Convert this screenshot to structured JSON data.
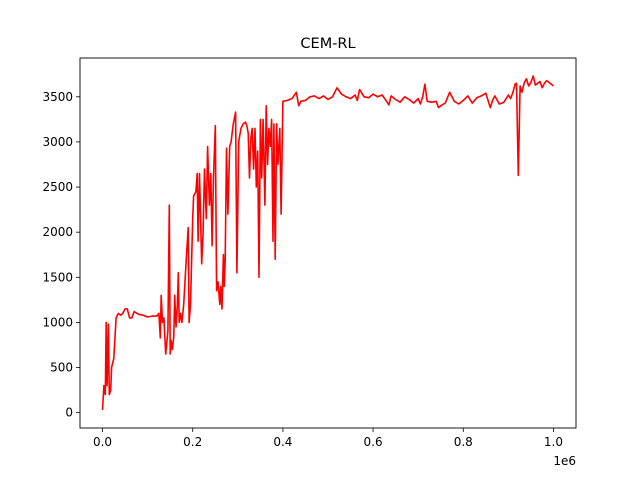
{
  "chart_data": {
    "type": "line",
    "title": "CEM-RL",
    "xlabel": "",
    "ylabel": "",
    "x_offset_label": "1e6",
    "xlim": [
      -0.05,
      1.05
    ],
    "ylim": [
      -170,
      3930
    ],
    "xticks": [
      0.0,
      0.2,
      0.4,
      0.6,
      0.8,
      1.0
    ],
    "xtick_labels": [
      "0.0",
      "0.2",
      "0.4",
      "0.6",
      "0.8",
      "1.0"
    ],
    "yticks": [
      0,
      500,
      1000,
      1500,
      2000,
      2500,
      3000,
      3500
    ],
    "ytick_labels": [
      "0",
      "500",
      "1000",
      "1500",
      "2000",
      "2500",
      "3000",
      "3500"
    ],
    "grid": false,
    "series": [
      {
        "color": "#ff0000",
        "points": [
          [
            0.0,
            30
          ],
          [
            0.003,
            300
          ],
          [
            0.006,
            200
          ],
          [
            0.008,
            1000
          ],
          [
            0.01,
            300
          ],
          [
            0.013,
            980
          ],
          [
            0.015,
            200
          ],
          [
            0.018,
            250
          ],
          [
            0.02,
            500
          ],
          [
            0.025,
            600
          ],
          [
            0.03,
            1050
          ],
          [
            0.035,
            1100
          ],
          [
            0.04,
            1080
          ],
          [
            0.045,
            1100
          ],
          [
            0.05,
            1150
          ],
          [
            0.055,
            1150
          ],
          [
            0.06,
            1050
          ],
          [
            0.065,
            1050
          ],
          [
            0.07,
            1120
          ],
          [
            0.08,
            1090
          ],
          [
            0.09,
            1080
          ],
          [
            0.1,
            1060
          ],
          [
            0.11,
            1070
          ],
          [
            0.12,
            1070
          ],
          [
            0.125,
            1100
          ],
          [
            0.128,
            830
          ],
          [
            0.13,
            1300
          ],
          [
            0.133,
            1000
          ],
          [
            0.136,
            1050
          ],
          [
            0.14,
            650
          ],
          [
            0.145,
            900
          ],
          [
            0.148,
            2300
          ],
          [
            0.15,
            650
          ],
          [
            0.152,
            800
          ],
          [
            0.155,
            700
          ],
          [
            0.158,
            850
          ],
          [
            0.16,
            1300
          ],
          [
            0.163,
            950
          ],
          [
            0.166,
            1200
          ],
          [
            0.168,
            1550
          ],
          [
            0.17,
            1000
          ],
          [
            0.173,
            1100
          ],
          [
            0.176,
            1000
          ],
          [
            0.18,
            1200
          ],
          [
            0.185,
            1650
          ],
          [
            0.19,
            2050
          ],
          [
            0.192,
            1000
          ],
          [
            0.195,
            1200
          ],
          [
            0.2,
            2150
          ],
          [
            0.202,
            2400
          ],
          [
            0.207,
            2450
          ],
          [
            0.21,
            2650
          ],
          [
            0.212,
            1900
          ],
          [
            0.215,
            2650
          ],
          [
            0.22,
            1650
          ],
          [
            0.223,
            2000
          ],
          [
            0.226,
            2700
          ],
          [
            0.23,
            2150
          ],
          [
            0.233,
            2950
          ],
          [
            0.237,
            2300
          ],
          [
            0.24,
            2650
          ],
          [
            0.243,
            1850
          ],
          [
            0.246,
            2600
          ],
          [
            0.25,
            3180
          ],
          [
            0.253,
            1350
          ],
          [
            0.256,
            1450
          ],
          [
            0.26,
            1200
          ],
          [
            0.262,
            1400
          ],
          [
            0.265,
            1150
          ],
          [
            0.268,
            1750
          ],
          [
            0.27,
            1400
          ],
          [
            0.272,
            1700
          ],
          [
            0.275,
            2930
          ],
          [
            0.278,
            2200
          ],
          [
            0.282,
            2950
          ],
          [
            0.285,
            3000
          ],
          [
            0.29,
            3200
          ],
          [
            0.295,
            3330
          ],
          [
            0.298,
            1550
          ],
          [
            0.302,
            3000
          ],
          [
            0.307,
            3150
          ],
          [
            0.312,
            3200
          ],
          [
            0.317,
            3220
          ],
          [
            0.32,
            3180
          ],
          [
            0.323,
            3100
          ],
          [
            0.326,
            2600
          ],
          [
            0.329,
            3050
          ],
          [
            0.332,
            3150
          ],
          [
            0.335,
            2700
          ],
          [
            0.338,
            3150
          ],
          [
            0.341,
            2500
          ],
          [
            0.344,
            2900
          ],
          [
            0.347,
            1500
          ],
          [
            0.35,
            3250
          ],
          [
            0.353,
            2600
          ],
          [
            0.356,
            3250
          ],
          [
            0.36,
            2300
          ],
          [
            0.363,
            3400
          ],
          [
            0.366,
            2750
          ],
          [
            0.369,
            3150
          ],
          [
            0.372,
            2950
          ],
          [
            0.375,
            3250
          ],
          [
            0.378,
            1900
          ],
          [
            0.38,
            3200
          ],
          [
            0.383,
            1700
          ],
          [
            0.386,
            3200
          ],
          [
            0.389,
            2750
          ],
          [
            0.393,
            3150
          ],
          [
            0.396,
            2200
          ],
          [
            0.4,
            3450
          ],
          [
            0.41,
            3460
          ],
          [
            0.42,
            3480
          ],
          [
            0.43,
            3550
          ],
          [
            0.435,
            3400
          ],
          [
            0.44,
            3450
          ],
          [
            0.45,
            3460
          ],
          [
            0.46,
            3500
          ],
          [
            0.47,
            3510
          ],
          [
            0.48,
            3480
          ],
          [
            0.49,
            3510
          ],
          [
            0.5,
            3470
          ],
          [
            0.51,
            3500
          ],
          [
            0.52,
            3600
          ],
          [
            0.53,
            3530
          ],
          [
            0.54,
            3500
          ],
          [
            0.55,
            3480
          ],
          [
            0.56,
            3520
          ],
          [
            0.565,
            3460
          ],
          [
            0.57,
            3580
          ],
          [
            0.58,
            3500
          ],
          [
            0.59,
            3490
          ],
          [
            0.6,
            3530
          ],
          [
            0.61,
            3500
          ],
          [
            0.62,
            3520
          ],
          [
            0.63,
            3450
          ],
          [
            0.635,
            3410
          ],
          [
            0.64,
            3510
          ],
          [
            0.65,
            3470
          ],
          [
            0.66,
            3440
          ],
          [
            0.67,
            3500
          ],
          [
            0.68,
            3470
          ],
          [
            0.69,
            3430
          ],
          [
            0.7,
            3480
          ],
          [
            0.705,
            3420
          ],
          [
            0.71,
            3500
          ],
          [
            0.715,
            3640
          ],
          [
            0.72,
            3450
          ],
          [
            0.73,
            3440
          ],
          [
            0.74,
            3450
          ],
          [
            0.745,
            3380
          ],
          [
            0.75,
            3400
          ],
          [
            0.76,
            3430
          ],
          [
            0.77,
            3550
          ],
          [
            0.78,
            3450
          ],
          [
            0.79,
            3420
          ],
          [
            0.8,
            3460
          ],
          [
            0.81,
            3510
          ],
          [
            0.82,
            3430
          ],
          [
            0.83,
            3490
          ],
          [
            0.84,
            3510
          ],
          [
            0.85,
            3540
          ],
          [
            0.86,
            3380
          ],
          [
            0.865,
            3460
          ],
          [
            0.87,
            3510
          ],
          [
            0.88,
            3420
          ],
          [
            0.89,
            3440
          ],
          [
            0.9,
            3520
          ],
          [
            0.905,
            3480
          ],
          [
            0.91,
            3550
          ],
          [
            0.915,
            3640
          ],
          [
            0.918,
            3650
          ],
          [
            0.922,
            2630
          ],
          [
            0.926,
            3620
          ],
          [
            0.93,
            3550
          ],
          [
            0.935,
            3650
          ],
          [
            0.94,
            3700
          ],
          [
            0.945,
            3620
          ],
          [
            0.95,
            3660
          ],
          [
            0.955,
            3730
          ],
          [
            0.96,
            3630
          ],
          [
            0.965,
            3650
          ],
          [
            0.97,
            3670
          ],
          [
            0.975,
            3600
          ],
          [
            0.98,
            3650
          ],
          [
            0.985,
            3680
          ],
          [
            0.99,
            3660
          ],
          [
            1.0,
            3620
          ]
        ]
      }
    ]
  }
}
